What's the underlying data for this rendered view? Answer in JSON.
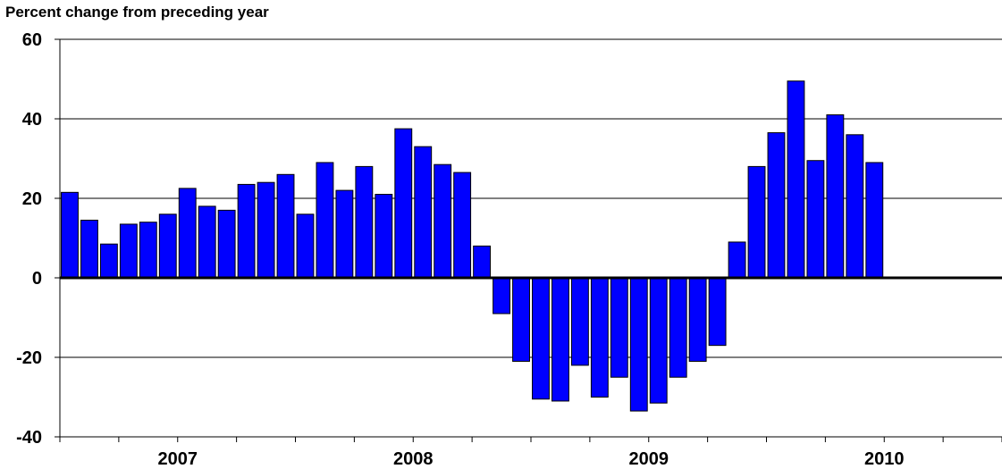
{
  "chart_data": {
    "type": "bar",
    "title": "Percent change from preceding year",
    "xlabel": "",
    "ylabel": "",
    "ylim": [
      -40,
      60
    ],
    "yticks": [
      "60",
      "40",
      "20",
      "0",
      "-20",
      "-40"
    ],
    "year_labels": [
      "2007",
      "2008",
      "2009",
      "2010"
    ],
    "x_range_months": 48,
    "grid": true,
    "bar_color": "#0000ff",
    "bar_edge_color": "#000000",
    "values": [
      21.5,
      14.5,
      8.5,
      13.5,
      14,
      16,
      22.5,
      18,
      17,
      23.5,
      24,
      26,
      16,
      29,
      22,
      28,
      21,
      37.5,
      33,
      28.5,
      26.5,
      8,
      -9,
      -21,
      -30.5,
      -31,
      -22,
      -30,
      -25,
      -33.5,
      -31.5,
      -25,
      -21,
      -17,
      9,
      28,
      36.5,
      49.5,
      29.5,
      41,
      36,
      29
    ]
  }
}
